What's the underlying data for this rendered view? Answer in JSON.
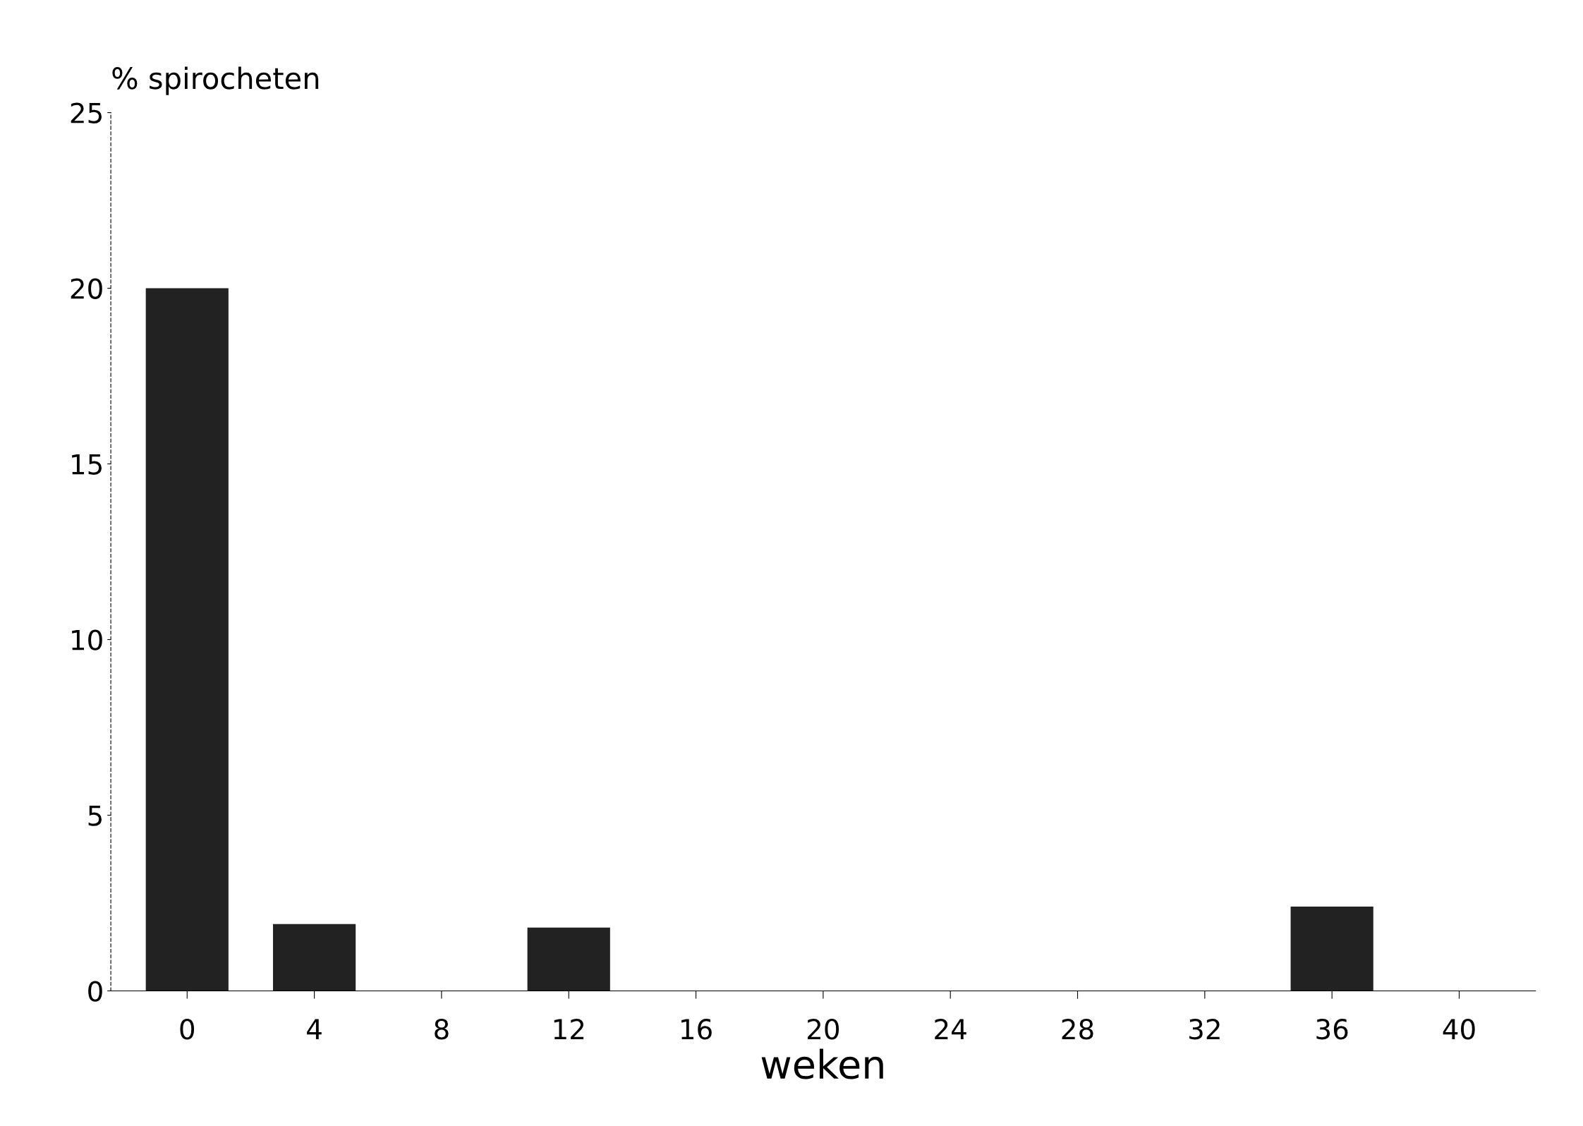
{
  "chart_data": {
    "type": "bar",
    "xlabel": "weken",
    "ylabel": "% spirocheten",
    "categories": [
      "0",
      "4",
      "8",
      "12",
      "16",
      "20",
      "24",
      "28",
      "32",
      "36",
      "40"
    ],
    "values": [
      20,
      1.9,
      0,
      1.8,
      0,
      0,
      0,
      0,
      0,
      2.4,
      0
    ],
    "color": "#222222",
    "ylim": [
      0,
      25
    ],
    "yticks": [
      0,
      5,
      10,
      15,
      20,
      25
    ],
    "grid": false
  }
}
